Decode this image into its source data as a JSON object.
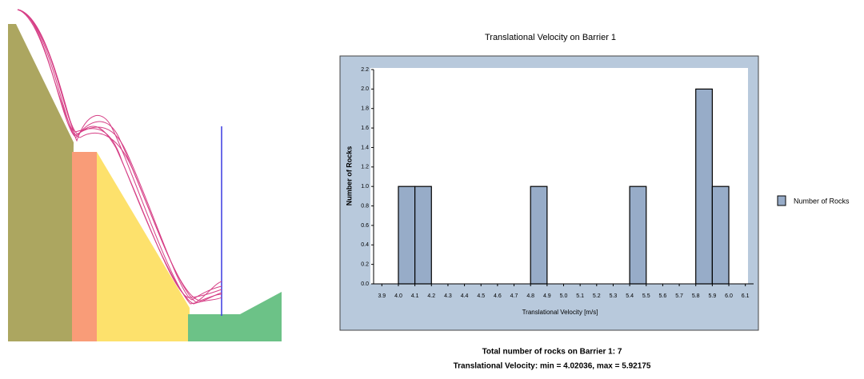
{
  "chart_data": {
    "type": "histogram",
    "title": "Translational Velocity on Barrier 1",
    "x_label": "Translational Velocity [m/s]",
    "y_label": "Number of Rocks",
    "bins": [
      4.0,
      4.1,
      4.2,
      4.3,
      4.4,
      4.5,
      4.6,
      4.7,
      4.8,
      4.9,
      5.0,
      5.1,
      5.2,
      5.3,
      5.4,
      5.5,
      5.6,
      5.7,
      5.8,
      5.9,
      6.0
    ],
    "series": [
      {
        "name": "Number of Rocks",
        "color": "#97acc8",
        "values": [
          1,
          1,
          0,
          0,
          0,
          0,
          0,
          0,
          1,
          0,
          0,
          0,
          0,
          0,
          1,
          0,
          0,
          0,
          2,
          1
        ]
      }
    ],
    "xlim": [
      3.85,
      6.15
    ],
    "xticks": [
      {
        "value": 3.9,
        "label": "3.9"
      },
      {
        "value": 4.0,
        "label": "4.0"
      },
      {
        "value": 4.1,
        "label": "4.1"
      },
      {
        "value": 4.2,
        "label": "4.2"
      },
      {
        "value": 4.3,
        "label": "4.3"
      },
      {
        "value": 4.4,
        "label": "4.4"
      },
      {
        "value": 4.5,
        "label": "4.5"
      },
      {
        "value": 4.6,
        "label": "4.6"
      },
      {
        "value": 4.7,
        "label": "4.7"
      },
      {
        "value": 4.8,
        "label": "4.8"
      },
      {
        "value": 4.9,
        "label": "4.9"
      },
      {
        "value": 5.0,
        "label": "5.0"
      },
      {
        "value": 5.1,
        "label": "5.1"
      },
      {
        "value": 5.2,
        "label": "5.2"
      },
      {
        "value": 5.3,
        "label": "5.3"
      },
      {
        "value": 5.4,
        "label": "5.4"
      },
      {
        "value": 5.5,
        "label": "5.5"
      },
      {
        "value": 5.6,
        "label": "5.6"
      },
      {
        "value": 5.7,
        "label": "5.7"
      },
      {
        "value": 5.8,
        "label": "5.8"
      },
      {
        "value": 5.9,
        "label": "5.9"
      },
      {
        "value": 6.0,
        "label": "6.0"
      },
      {
        "value": 6.1,
        "label": "6.1"
      }
    ],
    "ylim": [
      0,
      2.2
    ],
    "yticks": [
      {
        "value": 0,
        "label": "0.0"
      },
      {
        "value": 0.2,
        "label": "0.2"
      },
      {
        "value": 0.4,
        "label": "0.4"
      },
      {
        "value": 0.6,
        "label": "0.6"
      },
      {
        "value": 0.8,
        "label": "0.8"
      },
      {
        "value": 1.0,
        "label": "1.0"
      },
      {
        "value": 1.2,
        "label": "1.2"
      },
      {
        "value": 1.4,
        "label": "1.4"
      },
      {
        "value": 1.6,
        "label": "1.6"
      },
      {
        "value": 1.8,
        "label": "1.8"
      },
      {
        "value": 2.0,
        "label": "2.0"
      },
      {
        "value": 2.2,
        "label": "2.2"
      }
    ],
    "legend": "right",
    "footer": [
      "Total number of rocks on Barrier 1:  7",
      "Translational Velocity:  min = 4.02036,  max = 5.92175"
    ]
  }
}
